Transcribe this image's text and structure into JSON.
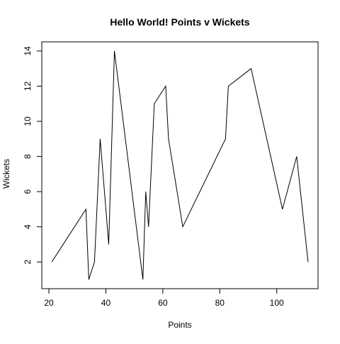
{
  "chart_data": {
    "type": "line",
    "title": "Hello World! Points v Wickets",
    "xlabel": "Points",
    "ylabel": "Wickets",
    "xlim": [
      17.5,
      114.5
    ],
    "ylim": [
      0.48,
      14.52
    ],
    "x_ticks": [
      20,
      40,
      60,
      80,
      100
    ],
    "y_ticks": [
      2,
      4,
      6,
      8,
      10,
      12,
      14
    ],
    "grid": false,
    "legend": "none",
    "series": [
      {
        "name": "",
        "color": "#000000",
        "x": [
          21,
          33,
          34,
          36,
          38,
          41,
          43,
          53,
          54,
          55,
          57,
          61,
          62,
          67,
          82,
          83,
          91,
          102,
          107,
          111
        ],
        "y": [
          2,
          5,
          1,
          2,
          9,
          3,
          14,
          1,
          6,
          4,
          11,
          12,
          9,
          4,
          9,
          12,
          13,
          5,
          8,
          2
        ]
      }
    ]
  }
}
